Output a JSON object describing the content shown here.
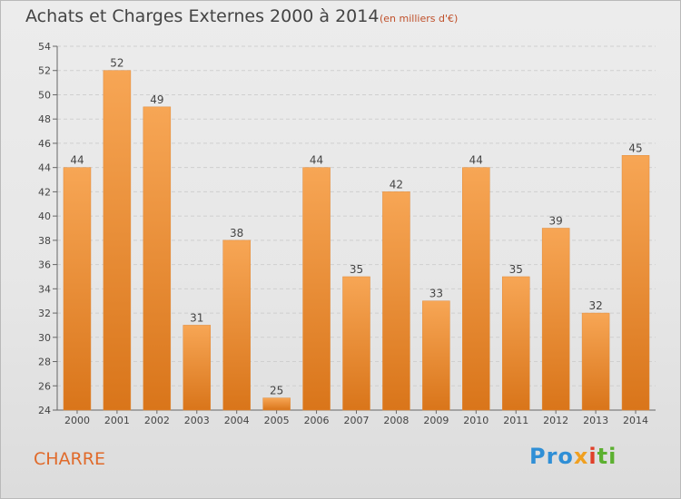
{
  "header": {
    "title": "Achats et Charges Externes 2000 à 2014",
    "unit": "(en milliers d'€)"
  },
  "footer": {
    "commune": "CHARRE",
    "logo_text": "Proxiti",
    "logo_parts": [
      "Pro",
      "x",
      "i",
      "ti"
    ]
  },
  "colors": {
    "bar_light": "#f7a655",
    "bar_dark": "#d9751a",
    "text": "#444444",
    "accent": "#e06a2a"
  },
  "chart_data": {
    "type": "bar",
    "title": "Achats et Charges Externes 2000 à 2014",
    "subtitle": "(en milliers d'€)",
    "categories": [
      "2000",
      "2001",
      "2002",
      "2003",
      "2004",
      "2005",
      "2006",
      "2007",
      "2008",
      "2009",
      "2010",
      "2011",
      "2012",
      "2013",
      "2014"
    ],
    "values": [
      44,
      52,
      49,
      31,
      38,
      25,
      44,
      35,
      42,
      33,
      44,
      35,
      39,
      32,
      45
    ],
    "ylim": [
      24,
      54
    ],
    "yticks": [
      24,
      26,
      28,
      30,
      32,
      34,
      36,
      38,
      40,
      42,
      44,
      46,
      48,
      50,
      52,
      54
    ],
    "grid": true,
    "xlabel": "",
    "ylabel": ""
  }
}
